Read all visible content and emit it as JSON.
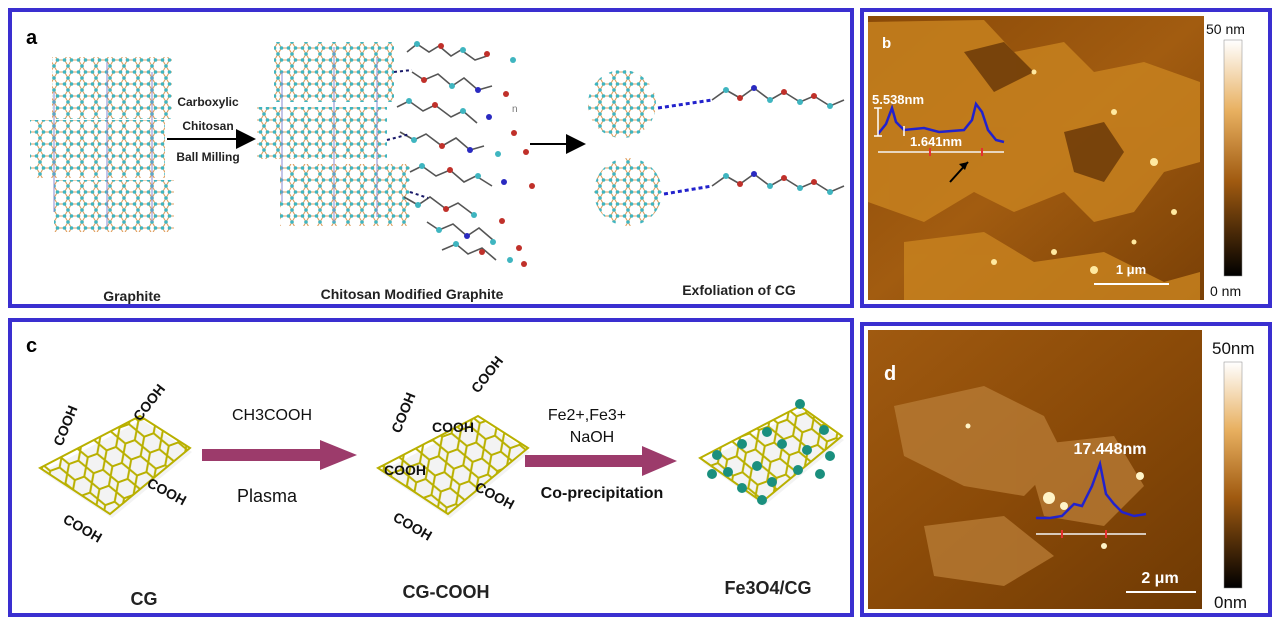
{
  "panel_a": {
    "letter": "a",
    "step1": "Carboxylic",
    "step2": "Chitosan",
    "step3": "Ball Milling",
    "caption_left": "Graphite",
    "caption_mid": "Chitosan Modified Graphite",
    "caption_right": "Exfoliation of CG",
    "n_marker": "n"
  },
  "panel_b": {
    "letter": "b",
    "scale_top": "50 nm",
    "scale_bottom": "0 nm",
    "height1": "5.538nm",
    "height2": "1.641nm",
    "scalebar": "1 μm"
  },
  "panel_c": {
    "letter": "c",
    "reagent1": "CH3COOH",
    "condition1": "Plasma",
    "reagent2": "Fe2+,Fe3+",
    "reagent3": "NaOH",
    "condition2": "Co-precipitation",
    "group": "COOH",
    "caption_left": "CG",
    "caption_mid": "CG-COOH",
    "caption_right": "Fe3O4/CG"
  },
  "panel_d": {
    "letter": "d",
    "scale_top": "50nm",
    "scale_bottom": "0nm",
    "height": "17.448nm",
    "scalebar": "2 μm"
  },
  "colors": {
    "border": "#3a2fd0",
    "hex_line": "#b9b000",
    "arrow": "#9c3b6b",
    "particle": "#1a8f7e",
    "profile": "#2222cc"
  }
}
